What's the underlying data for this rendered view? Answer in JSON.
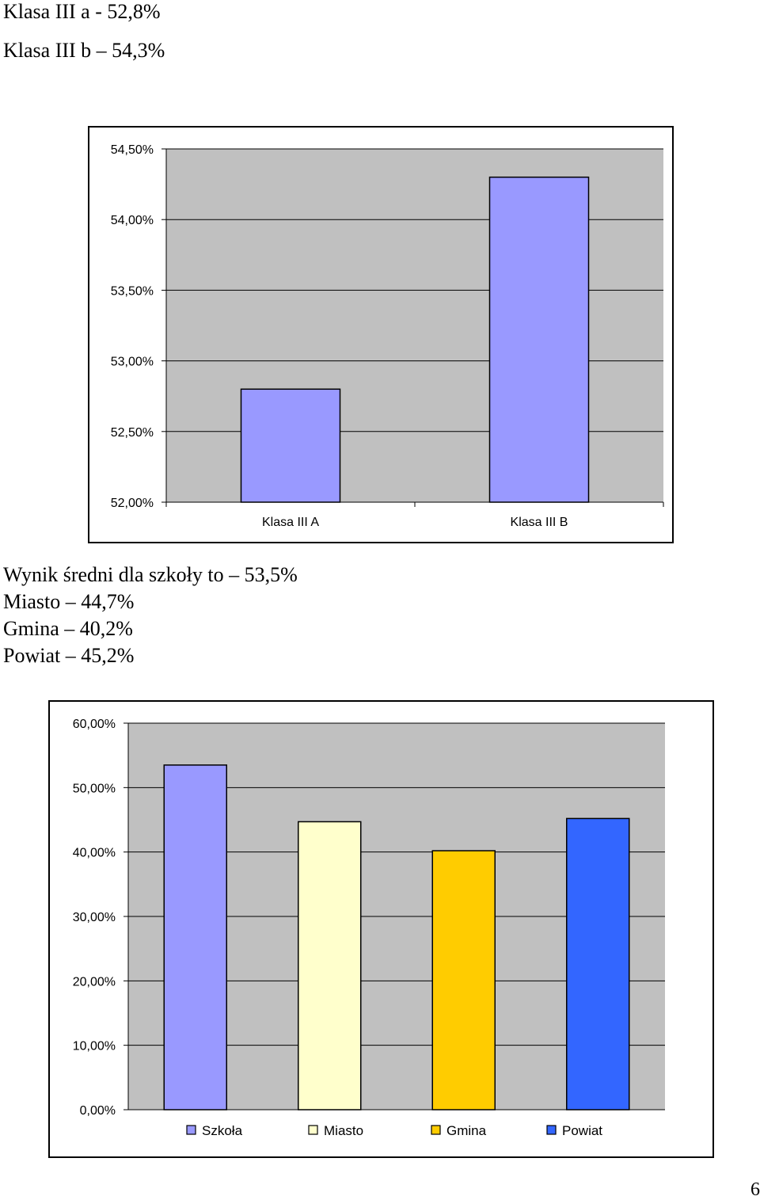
{
  "intro": {
    "line1": "Klasa III a - 52,8%",
    "line2": "Klasa III b – 54,3%"
  },
  "summary": {
    "line1": "Wynik średni dla szkoły to – 53,5%",
    "line2": "Miasto – 44,7%",
    "line3": "Gmina – 40,2%",
    "line4": "Powiat – 45,2%"
  },
  "page_number": "6",
  "chart_data": [
    {
      "type": "bar",
      "categories": [
        "Klasa III A",
        "Klasa III B"
      ],
      "values": [
        52.8,
        54.3
      ],
      "ylim": [
        52.0,
        54.5
      ],
      "yticks": [
        54.5,
        54.0,
        53.5,
        53.0,
        52.5,
        52.0
      ],
      "ytick_labels": [
        "54,50%",
        "54,00%",
        "53,50%",
        "53,00%",
        "52,50%",
        "52,00%"
      ],
      "colors": [
        "#9999ff",
        "#9999ff"
      ],
      "plot_background": "#c0c0c0",
      "grid": true,
      "legend": "none"
    },
    {
      "type": "bar",
      "categories": [
        "Szkoła",
        "Miasto",
        "Gmina",
        "Powiat"
      ],
      "values": [
        53.5,
        44.7,
        40.2,
        45.2
      ],
      "ylim": [
        0,
        60
      ],
      "yticks": [
        60,
        50,
        40,
        30,
        20,
        10,
        0
      ],
      "ytick_labels": [
        "60,00%",
        "50,00%",
        "40,00%",
        "30,00%",
        "20,00%",
        "10,00%",
        "0,00%"
      ],
      "colors": [
        "#9999ff",
        "#ffffcc",
        "#ffcc00",
        "#3366ff"
      ],
      "plot_background": "#c0c0c0",
      "grid": true,
      "legend": "bottom"
    }
  ]
}
